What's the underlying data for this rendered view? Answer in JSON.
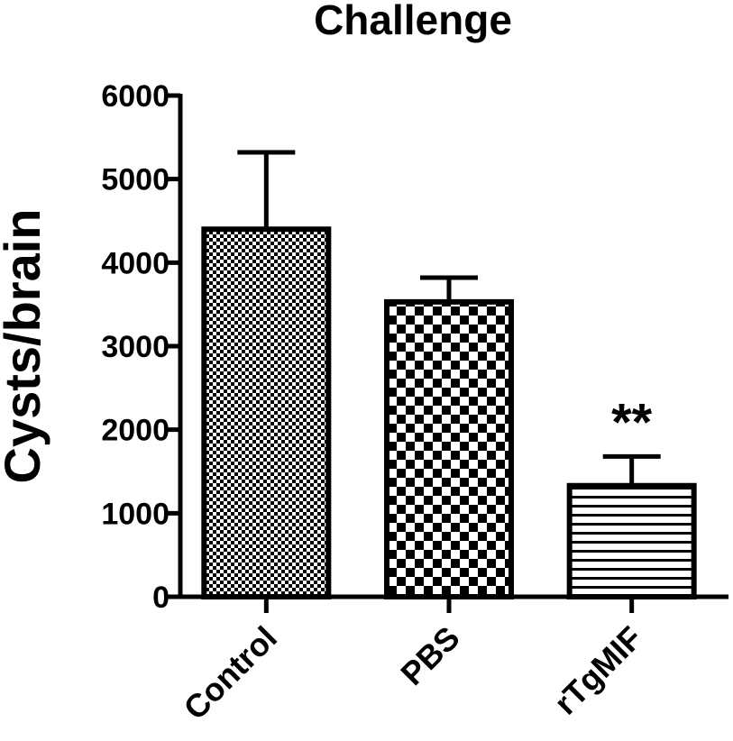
{
  "chart_data": {
    "type": "bar",
    "title": "Challenge",
    "xlabel": "",
    "ylabel": "Cysts/brain",
    "ylim": [
      0,
      6000
    ],
    "yticks": [
      0,
      1000,
      2000,
      3000,
      4000,
      5000,
      6000
    ],
    "yticklabels": [
      "0",
      "1000",
      "2000",
      "3000",
      "4000",
      "5000",
      "6000"
    ],
    "categories": [
      "Control",
      "PBS",
      "rTgMIF"
    ],
    "values": [
      4400,
      3530,
      1330
    ],
    "errors": [
      920,
      290,
      350
    ],
    "patterns": [
      "fine-checker",
      "coarse-checker",
      "horizontal-lines"
    ],
    "significance": [
      "",
      "",
      "**"
    ],
    "grid": false,
    "colors": {
      "fill": "#ffffff",
      "stroke": "#000000"
    }
  }
}
